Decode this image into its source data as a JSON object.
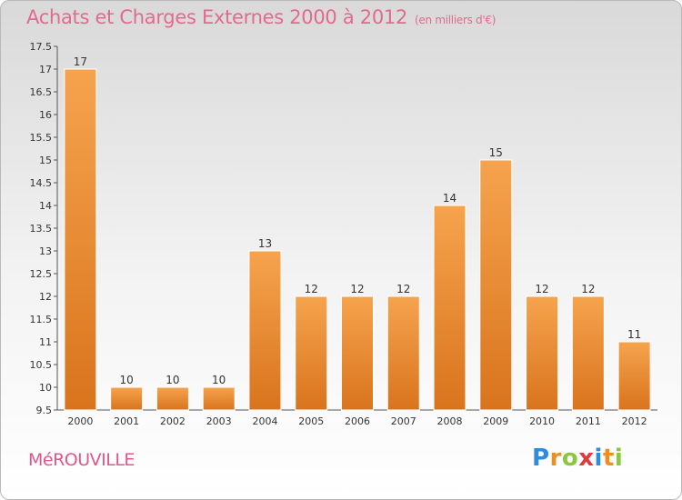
{
  "header": {
    "title": "Achats et Charges Externes 2000 à 2012",
    "unit": "(en milliers d'€)"
  },
  "footer": {
    "city": "MéROUVILLE",
    "logo_letters": [
      "P",
      "r",
      "o",
      "x",
      "i",
      "t",
      "i"
    ],
    "logo_colors": [
      "#2d8be0",
      "#f18d1e",
      "#8cc63e",
      "#e23a3a",
      "#2d8be0",
      "#f18d1e",
      "#8cc63e"
    ]
  },
  "colors": {
    "bar_light": "#f6a34e",
    "bar_dark": "#d9741d",
    "title": "#e36a8c"
  },
  "chart_data": {
    "type": "bar",
    "categories": [
      "2000",
      "2001",
      "2002",
      "2003",
      "2004",
      "2005",
      "2006",
      "2007",
      "2008",
      "2009",
      "2010",
      "2011",
      "2012"
    ],
    "values": [
      17,
      10,
      10,
      10,
      13,
      12,
      12,
      12,
      14,
      15,
      12,
      12,
      11
    ],
    "ylim": [
      9.5,
      17.5
    ],
    "yticks": [
      "9.5",
      "10",
      "10.5",
      "11",
      "11.5",
      "12",
      "12.5",
      "13",
      "13.5",
      "14",
      "14.5",
      "15",
      "15.5",
      "16",
      "16.5",
      "17",
      "17.5"
    ],
    "grid": false
  }
}
